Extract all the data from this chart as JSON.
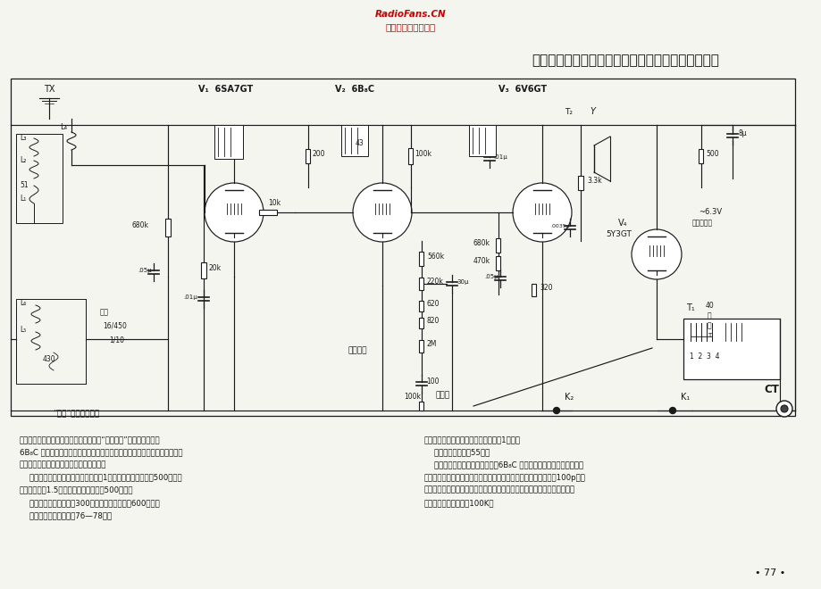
{
  "page_bg": "#f5f5f0",
  "title_main": "和平牌交流四管收唱两用机（原天津无线电厂产品）",
  "watermark_line1": "RadioFans.CN",
  "watermark_line2": "收音机爱好者资料库",
  "circuit_label": "“和平”四管收唱两用",
  "tx_label": "TX",
  "k2_label": "K₂",
  "k1_label": "K₁",
  "ct_label": "CT",
  "explanation_col1_lines": [
    "【说明】本机和北京牌交流四管机均系仿“奥斯科人”牌产品。电子管",
    "6B₈C 能起二个电子管的作用（按来复式电路工作），因此，虽然为四管收音",
    "机，实际功效与五灯超外差式收音机相似。",
    "    输出功率，本机收音部分输出功率为1瓦，最大不失真功率为500毫瓦。",
    "捡波切片时为1.5瓦，最大不失真功率为500毫瓦。",
    "    灵敏度，中波段不大于300微伏，短波段不大于600微伏。",
    "    电唱转盘转速，每分钟76—78转。"
  ],
  "explanation_col2_lines": [
    "明头型式，晶体唱头（输出电压不低于1伏）。",
    "    电源消耗功率，约55瓦。",
    "    本机与北京牌线路相异处如下：6B₈C 的阳极电阻阻值稍大，阴极上接",
    "有旁路电容，因而不产生电流负回授作用。电位器衬管中心接头之100p电容",
    "末接地。电位器两端之电容器值稍大。天线输入端子只有一个，加入了电唱",
    "头设备和高音滤波电阻100K。"
  ],
  "page_number": "• 77 •",
  "lc": "#1a1a1a",
  "lw_main": 0.85
}
